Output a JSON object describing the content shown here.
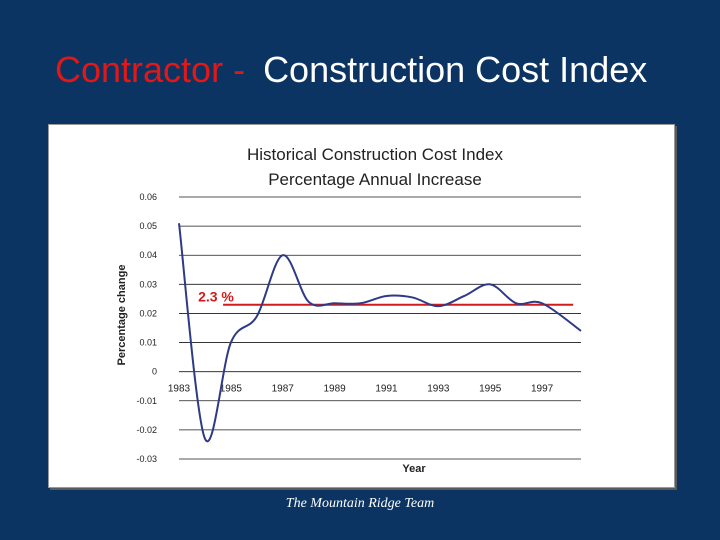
{
  "slide": {
    "title_part1": "Contractor -",
    "title_part2": "Construction Cost Index",
    "footer": "The Mountain Ridge Team"
  },
  "colors": {
    "background": "#0b3462",
    "title_accent": "#e01818",
    "line": "#2e3a86",
    "reference_line": "#d01c1c"
  },
  "chart_data": {
    "type": "line",
    "title": "Historical Construction Cost Index",
    "subtitle": "Percentage Annual Increase",
    "xlabel": "Year",
    "ylabel": "Percentage change",
    "ylim": [
      -0.03,
      0.06
    ],
    "yticks": [
      0.06,
      0.05,
      0.04,
      0.03,
      0.02,
      0.01,
      0,
      -0.01,
      -0.02,
      -0.03
    ],
    "ytick_labels": [
      "0.06",
      "0.05",
      "0.04",
      "0.03",
      "0.02",
      "0.01",
      "0",
      "-0.01",
      "-0.02",
      "-0.03"
    ],
    "xlim": [
      1983,
      1998.5
    ],
    "xticks": [
      1983,
      1985,
      1987,
      1989,
      1991,
      1993,
      1995,
      1997
    ],
    "xtick_labels": [
      "1983",
      "1985",
      "1987",
      "1989",
      "1991",
      "1993",
      "1995",
      "1997"
    ],
    "grid": true,
    "series": [
      {
        "name": "Percentage change",
        "x": [
          1983,
          1984,
          1985,
          1986,
          1987,
          1988,
          1989,
          1990,
          1991,
          1992,
          1993,
          1994,
          1995,
          1996,
          1997,
          1998.5
        ],
        "values": [
          0.051,
          -0.023,
          0.01,
          0.019,
          0.04,
          0.024,
          0.0235,
          0.0235,
          0.026,
          0.0255,
          0.0225,
          0.026,
          0.03,
          0.0235,
          0.0235,
          0.014
        ]
      }
    ],
    "reference_line": {
      "value": 0.023,
      "label": "2.3 %",
      "x_start": 1984.7,
      "x_end": 1998.2
    }
  }
}
